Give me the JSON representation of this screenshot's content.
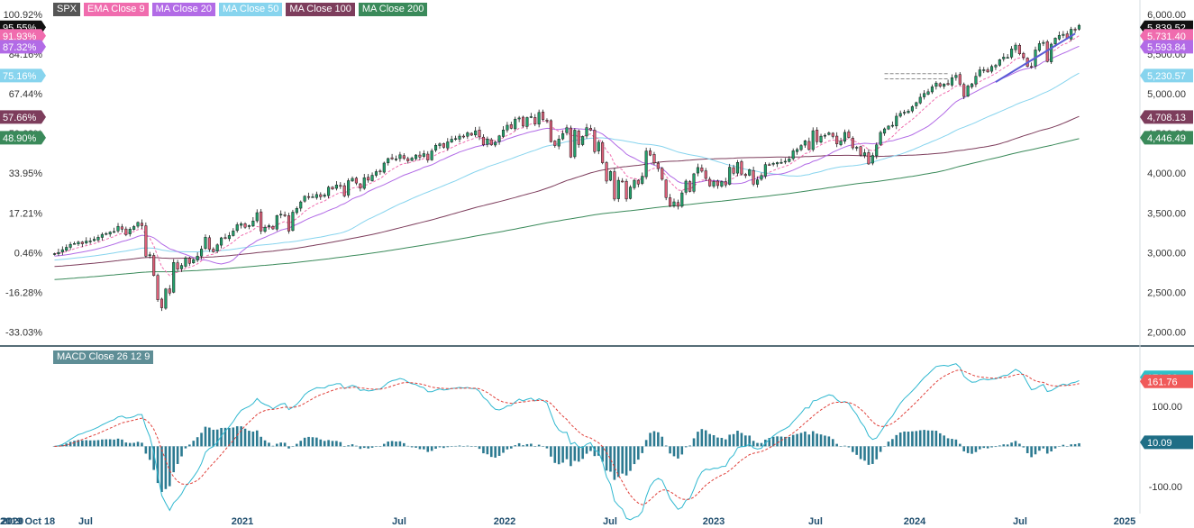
{
  "legend": {
    "items": [
      {
        "label": "SPX",
        "color": "#555555"
      },
      {
        "label": "EMA Close 9",
        "color": "#f06cae"
      },
      {
        "label": "MA Close 20",
        "color": "#b26be6"
      },
      {
        "label": "MA Close 50",
        "color": "#87d4ee"
      },
      {
        "label": "MA Close 100",
        "color": "#7d3d5c"
      },
      {
        "label": "MA Close 200",
        "color": "#3a8a5a"
      }
    ],
    "macd_label": "MACD Close 26 12 9",
    "macd_color": "#5f8e96"
  },
  "chart_data": [
    {
      "type": "candlestick",
      "title": "SPX",
      "x_axis": {
        "labels": [
          "2019 Oct 18",
          "2020",
          "Jul",
          "2021",
          "Jul",
          "2022",
          "Jul",
          "2023",
          "Jul",
          "2024",
          "Jul",
          "2025"
        ]
      },
      "y_axis_right": {
        "ticks": [
          "6,000.00",
          "5,500.00",
          "5,000.00",
          "4,500.00",
          "4,000.00",
          "3,500.00",
          "3,000.00",
          "2,500.00",
          "2,000.00"
        ],
        "range": [
          1890,
          6070
        ]
      },
      "y_axis_left": {
        "ticks": [
          "100.92%",
          "84.16%",
          "67.44%",
          "50.69%",
          "33.95%",
          "17.21%",
          "0.46%",
          "-16.28%",
          "-33.03%"
        ]
      },
      "price_labels": [
        {
          "value": "5,839.52",
          "color": "#111111",
          "y": 5839.52
        },
        {
          "value": "5,731.40",
          "color": "#f06cae",
          "y": 5731.4
        },
        {
          "value": "5,593.84",
          "color": "#b26be6",
          "y": 5593.84
        },
        {
          "value": "5,230.57",
          "color": "#87d4ee",
          "y": 5230.57
        },
        {
          "value": "4,708.13",
          "color": "#7d3d5c",
          "y": 4708.13
        },
        {
          "value": "4,446.49",
          "color": "#3a8a5a",
          "y": 4446.49
        }
      ],
      "pct_labels": [
        {
          "value": "95.55%",
          "color": "#111111",
          "y": 5839.52
        },
        {
          "value": "91.93%",
          "color": "#f06cae",
          "y": 5731.4
        },
        {
          "value": "87.32%",
          "color": "#b26be6",
          "y": 5593.84
        },
        {
          "value": "75.16%",
          "color": "#87d4ee",
          "y": 5230.57
        },
        {
          "value": "57.66%",
          "color": "#7d3d5c",
          "y": 4708.13
        },
        {
          "value": "48.90%",
          "color": "#3a8a5a",
          "y": 4446.49
        }
      ],
      "close": [
        2986,
        3001,
        3036,
        3066,
        3103,
        3114,
        3131,
        3110,
        3145,
        3146,
        3168,
        3193,
        3229,
        3240,
        3258,
        3265,
        3330,
        3295,
        3225,
        3295,
        3328,
        3380,
        3339,
        2954,
        2972,
        2711,
        2405,
        2304,
        2541,
        2489,
        2875,
        2790,
        2837,
        2930,
        2864,
        2912,
        2955,
        3044,
        3193,
        3041,
        3009,
        3097,
        3185,
        3185,
        3215,
        3272,
        3351,
        3363,
        3319,
        3340,
        3398,
        3503,
        3271,
        3319,
        3339,
        3298,
        3466,
        3483,
        3465,
        3270,
        3509,
        3557,
        3638,
        3710,
        3699,
        3703,
        3732,
        3703,
        3725,
        3824,
        3801,
        3852,
        3841,
        3714,
        3906,
        3934,
        3876,
        3811,
        3943,
        3913,
        3974,
        4020,
        4019,
        4128,
        4185,
        4180,
        4181,
        4232,
        4186,
        4155,
        4191,
        4229,
        4204,
        4247,
        4166,
        4281,
        4352,
        4370,
        4327,
        4395,
        4429,
        4437,
        4468,
        4458,
        4509,
        4480,
        4535,
        4459,
        4358,
        4432,
        4357,
        4391,
        4471,
        4545,
        4605,
        4566,
        4682,
        4697,
        4594,
        4702,
        4713,
        4620,
        4766,
        4677,
        4663,
        4398,
        4348,
        4431,
        4500,
        4574,
        4204,
        4543,
        4362,
        4463,
        4575,
        4543,
        4272,
        4392,
        4132,
        3901,
        4023,
        3674,
        3911,
        3900,
        3675,
        3825,
        3911,
        3863,
        3961,
        4280,
        4228,
        4130,
        4058,
        3924,
        3693,
        3585,
        3639,
        3583,
        3752,
        3901,
        3770,
        3992,
        4072,
        4026,
        3934,
        3839,
        3895,
        3844,
        3895,
        3852,
        4076,
        3999,
        4136,
        3990,
        3970,
        4045,
        3862,
        3917,
        3971,
        4109,
        4105,
        4124,
        4134,
        4137,
        4151,
        4180,
        4282,
        4299,
        4348,
        4409,
        4298,
        4536,
        4398,
        4467,
        4478,
        4508,
        4464,
        4369,
        4405,
        4515,
        4450,
        4320,
        4327,
        4229,
        4258,
        4117,
        4224,
        4358,
        4514,
        4559,
        4594,
        4604,
        4719,
        4754,
        4769,
        4783,
        4839,
        4890,
        4958,
        5005,
        5027,
        5089,
        5137,
        5096,
        5124,
        5117,
        5204,
        5234,
        5123,
        4967,
        5100,
        5127,
        5222,
        5303,
        5304,
        5277,
        5346,
        5360,
        5431,
        5464,
        5460,
        5567,
        5615,
        5505,
        5459,
        5347,
        5344,
        5554,
        5634,
        5648,
        5408,
        5627,
        5702,
        5738,
        5751,
        5699,
        5815,
        5808,
        5864
      ],
      "ema9_last": 5731.4,
      "ma20_last": 5593.84,
      "ma50_last": 5230.57,
      "ma100_last": 4708.13,
      "ma200_last": 4446.49
    },
    {
      "type": "macd",
      "title": "MACD Close 26 12 9",
      "y_axis_right": {
        "ticks": [
          "100.00",
          "-100.00"
        ],
        "range": [
          -145,
          205
        ]
      },
      "value_labels": [
        {
          "value": "171.86",
          "color": "#30c0c8",
          "y": 171.86
        },
        {
          "value": "161.76",
          "color": "#f05a5a",
          "y": 161.76
        },
        {
          "value": "10.09",
          "color": "#1f6e86",
          "y": 10.09
        }
      ]
    }
  ]
}
